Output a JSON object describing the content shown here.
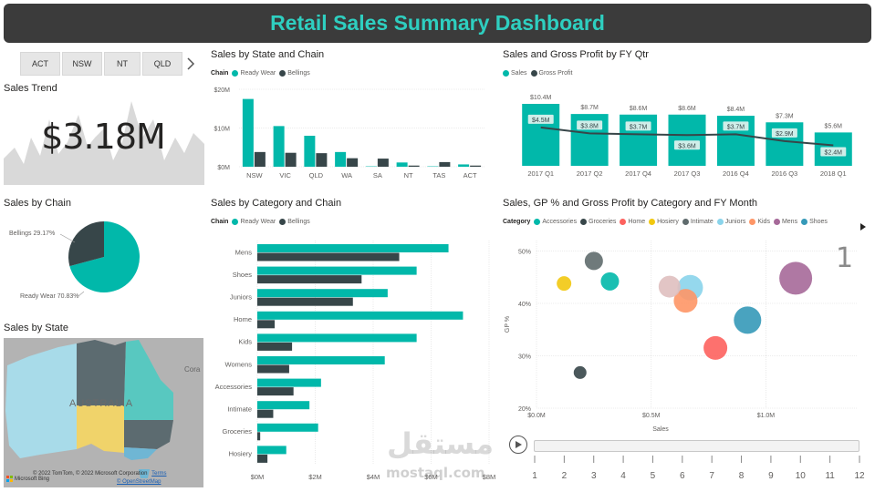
{
  "header": {
    "title": "Retail Sales Summary Dashboard"
  },
  "slicer": {
    "items": [
      "ACT",
      "NSW",
      "NT",
      "QLD"
    ]
  },
  "sales_trend": {
    "title": "Sales Trend",
    "value": "$3.18M"
  },
  "sales_by_chain": {
    "title": "Sales by Chain",
    "label_a": "Bellings 29.17%",
    "label_b": "Ready Wear 70.83%",
    "chart_data": {
      "type": "pie",
      "categories": [
        "Ready Wear",
        "Bellings"
      ],
      "values": [
        70.83,
        29.17
      ],
      "colors": [
        "#01b8aa",
        "#374649"
      ]
    }
  },
  "sales_by_state": {
    "title": "Sales by State",
    "map_label": "AUSTRALIA",
    "map_side_label": "Cora",
    "attribution": "© 2022 TomTom, © 2022 Microsoft Corporation",
    "terms": "Terms",
    "osm": "© OpenStreetMap",
    "brand": "Microsoft Bing"
  },
  "state_chain": {
    "title": "Sales by State and Chain",
    "legend_label": "Chain",
    "series_names": [
      "Ready Wear",
      "Bellings"
    ],
    "y_ticks": [
      "$20M",
      "$10M",
      "$0M"
    ],
    "chart_data": {
      "type": "bar",
      "categories": [
        "NSW",
        "VIC",
        "QLD",
        "WA",
        "SA",
        "NT",
        "TAS",
        "ACT"
      ],
      "series": [
        {
          "name": "Ready Wear",
          "values": [
            17.5,
            10.5,
            8,
            3.8,
            0.1,
            1.1,
            0.1,
            0.6
          ],
          "color": "#01b8aa"
        },
        {
          "name": "Bellings",
          "values": [
            3.8,
            3.6,
            3.5,
            2.2,
            2.1,
            0.3,
            1.2,
            0.3
          ],
          "color": "#374649"
        }
      ],
      "ylim": [
        0,
        20
      ]
    }
  },
  "sales_gp_qtr": {
    "title": "Sales and Gross Profit by FY Qtr",
    "series_names": [
      "Sales",
      "Gross Profit"
    ],
    "chart_data": {
      "type": "bar",
      "categories": [
        "2017 Q1",
        "2017 Q2",
        "2017 Q4",
        "2017 Q3",
        "2016 Q4",
        "2016 Q3",
        "2018 Q1"
      ],
      "series": [
        {
          "name": "Sales",
          "values": [
            10.4,
            8.7,
            8.6,
            8.6,
            8.4,
            7.3,
            5.6
          ],
          "labels": [
            "$10.4M",
            "$8.7M",
            "$8.6M",
            "$8.6M",
            "$8.4M",
            "$7.3M",
            "$5.6M"
          ],
          "color": "#01b8aa"
        },
        {
          "name": "Gross Profit",
          "values": [
            4.5,
            3.8,
            3.7,
            3.6,
            3.7,
            2.9,
            2.4
          ],
          "labels": [
            "$4.5M",
            "$3.8M",
            "$3.7M",
            "$3.6M",
            "$3.7M",
            "$2.9M",
            "$2.4M"
          ],
          "color": "#374649"
        }
      ],
      "ylim": [
        0,
        12
      ]
    }
  },
  "category_chain": {
    "title": "Sales by Category and Chain",
    "legend_label": "Chain",
    "series_names": [
      "Ready Wear",
      "Bellings"
    ],
    "x_ticks": [
      "$0M",
      "$2M",
      "$4M",
      "$6M",
      "$8M"
    ],
    "chart_data": {
      "type": "bar",
      "orientation": "horizontal",
      "categories": [
        "Mens",
        "Shoes",
        "Juniors",
        "Home",
        "Kids",
        "Womens",
        "Accessories",
        "Intimate",
        "Groceries",
        "Hosiery"
      ],
      "series": [
        {
          "name": "Ready Wear",
          "values": [
            6.6,
            5.5,
            4.5,
            7.1,
            5.5,
            4.4,
            2.2,
            1.8,
            2.1,
            1.0
          ],
          "color": "#01b8aa"
        },
        {
          "name": "Bellings",
          "values": [
            4.9,
            3.6,
            3.3,
            0.6,
            1.2,
            1.1,
            1.25,
            0.55,
            0.1,
            0.35
          ],
          "color": "#374649"
        }
      ],
      "xlim": [
        0,
        8
      ]
    }
  },
  "scatter": {
    "title": "Sales, GP % and Gross Profit by Category and FY Month",
    "legend_label": "Category",
    "y_ticks": [
      "50%",
      "40%",
      "30%",
      "20%"
    ],
    "x_ticks": [
      "$0.0M",
      "$0.5M",
      "$1.0M"
    ],
    "ylabel": "GP %",
    "xlabel": "Sales",
    "frame_number": "1",
    "play_axis_ticks": [
      "1",
      "2",
      "3",
      "4",
      "5",
      "6",
      "7",
      "8",
      "9",
      "10",
      "11",
      "12"
    ],
    "chart_data": {
      "type": "scatter",
      "xlim": [
        0,
        1.4
      ],
      "ylim": [
        20,
        52
      ],
      "points": [
        {
          "name": "Accessories",
          "x": 0.32,
          "y": 44.2,
          "size": 10,
          "color": "#01b8aa"
        },
        {
          "name": "Groceries",
          "x": 0.19,
          "y": 26.8,
          "size": 7,
          "color": "#374649"
        },
        {
          "name": "Home",
          "x": 0.78,
          "y": 31.5,
          "size": 13,
          "color": "#fd625e"
        },
        {
          "name": "Hosiery",
          "x": 0.12,
          "y": 43.8,
          "size": 8,
          "color": "#f2c80f"
        },
        {
          "name": "Intimate",
          "x": 0.25,
          "y": 48.1,
          "size": 10,
          "color": "#5f6b6d"
        },
        {
          "name": "Juniors",
          "x": 0.67,
          "y": 43.0,
          "size": 14,
          "color": "#8ad4eb"
        },
        {
          "name": "Kids",
          "x": 0.65,
          "y": 40.5,
          "size": 13,
          "color": "#fe9666"
        },
        {
          "name": "Mens",
          "x": 1.13,
          "y": 44.8,
          "size": 18,
          "color": "#a66999"
        },
        {
          "name": "Shoes",
          "x": 0.92,
          "y": 36.8,
          "size": 15,
          "color": "#3599b8"
        },
        {
          "name": "Womens",
          "x": 0.58,
          "y": 43.2,
          "size": 12,
          "color": "#dfbfbf"
        }
      ]
    }
  },
  "watermark": {
    "arabic": "مستقل",
    "latin": "mostaql.com"
  }
}
